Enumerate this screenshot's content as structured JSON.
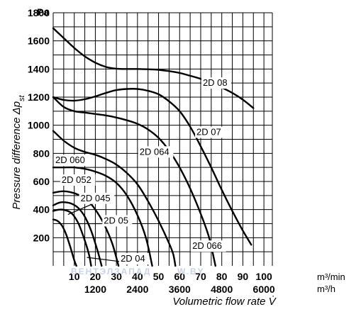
{
  "chart_data": {
    "type": "line",
    "ylabel_main": "Pressure difference Δp",
    "ylabel_sub": "st",
    "yunit": "Pa",
    "xlabel": "Volumetric flow rate V̇",
    "x_unit_min": "m³/min",
    "x_unit_h": "m³/h",
    "ylim": [
      0,
      1800
    ],
    "xlim": [
      0,
      104
    ],
    "grid": true,
    "y_ticks": [
      "1800",
      "1600",
      "1400",
      "1200",
      "1000",
      "800",
      "600",
      "400",
      "200"
    ],
    "x_ticks_min": [
      "10",
      "20",
      "30",
      "40",
      "50",
      "60",
      "70",
      "80",
      "90",
      "100"
    ],
    "x_ticks_h": [
      "1200",
      "2400",
      "3600",
      "4800",
      "6000"
    ],
    "watermark": "ВЕНТЭЛЗАПАД",
    "watermark_tail": "W.BY",
    "series": [
      {
        "name": "2D 08",
        "points": [
          [
            0,
            1690
          ],
          [
            5,
            1620
          ],
          [
            10,
            1550
          ],
          [
            15,
            1490
          ],
          [
            20,
            1445
          ],
          [
            25,
            1415
          ],
          [
            30,
            1402
          ],
          [
            35,
            1400
          ],
          [
            40,
            1400
          ],
          [
            45,
            1398
          ],
          [
            50,
            1394
          ],
          [
            55,
            1385
          ],
          [
            60,
            1372
          ],
          [
            65,
            1352
          ],
          [
            70,
            1330
          ],
          [
            75,
            1302
          ],
          [
            80,
            1268
          ],
          [
            85,
            1230
          ],
          [
            90,
            1182
          ],
          [
            95,
            1122
          ]
        ]
      },
      {
        "name": "2D 07",
        "points": [
          [
            0,
            1200
          ],
          [
            5,
            1180
          ],
          [
            10,
            1175
          ],
          [
            15,
            1185
          ],
          [
            20,
            1205
          ],
          [
            25,
            1230
          ],
          [
            30,
            1250
          ],
          [
            35,
            1258
          ],
          [
            40,
            1258
          ],
          [
            45,
            1245
          ],
          [
            50,
            1220
          ],
          [
            55,
            1170
          ],
          [
            60,
            1100
          ],
          [
            65,
            990
          ],
          [
            70,
            850
          ],
          [
            75,
            700
          ],
          [
            80,
            540
          ],
          [
            85,
            390
          ],
          [
            90,
            250
          ],
          [
            94,
            150
          ]
        ]
      },
      {
        "name": "2D 066",
        "points": [
          [
            0,
            1200
          ],
          [
            5,
            1130
          ],
          [
            10,
            1100
          ],
          [
            15,
            1090
          ],
          [
            20,
            1080
          ],
          [
            25,
            1070
          ],
          [
            30,
            1055
          ],
          [
            35,
            1035
          ],
          [
            40,
            1010
          ],
          [
            45,
            970
          ],
          [
            50,
            910
          ],
          [
            55,
            820
          ],
          [
            60,
            700
          ],
          [
            65,
            550
          ],
          [
            70,
            370
          ],
          [
            74,
            200
          ],
          [
            77,
            0
          ]
        ]
      },
      {
        "name": "2D 064",
        "points": [
          [
            0,
            960
          ],
          [
            5,
            890
          ],
          [
            10,
            840
          ],
          [
            15,
            810
          ],
          [
            20,
            790
          ],
          [
            25,
            760
          ],
          [
            30,
            720
          ],
          [
            35,
            660
          ],
          [
            40,
            580
          ],
          [
            45,
            460
          ],
          [
            50,
            320
          ],
          [
            55,
            160
          ],
          [
            57,
            80
          ],
          [
            58,
            0
          ]
        ]
      },
      {
        "name": "2D 060",
        "points": [
          [
            0,
            700
          ],
          [
            5,
            700
          ],
          [
            10,
            700
          ],
          [
            15,
            690
          ],
          [
            20,
            670
          ],
          [
            25,
            640
          ],
          [
            30,
            590
          ],
          [
            35,
            500
          ],
          [
            40,
            360
          ],
          [
            44,
            200
          ],
          [
            47,
            0
          ]
        ]
      },
      {
        "name": "2D 052",
        "points": [
          [
            0,
            520
          ],
          [
            4,
            530
          ],
          [
            8,
            525
          ],
          [
            12,
            505
          ],
          [
            16,
            470
          ],
          [
            20,
            400
          ],
          [
            24,
            300
          ],
          [
            28,
            160
          ],
          [
            31,
            0
          ]
        ]
      },
      {
        "name": "2D 045",
        "points": [
          [
            0,
            430
          ],
          [
            3,
            450
          ],
          [
            6,
            452
          ],
          [
            9,
            440
          ],
          [
            12,
            410
          ],
          [
            15,
            350
          ],
          [
            18,
            250
          ],
          [
            21,
            110
          ],
          [
            23,
            0
          ]
        ]
      },
      {
        "name": "2D 05",
        "points": [
          [
            0,
            390
          ],
          [
            3,
            400
          ],
          [
            6,
            395
          ],
          [
            9,
            370
          ],
          [
            12,
            300
          ],
          [
            15,
            180
          ],
          [
            17,
            80
          ],
          [
            18,
            0
          ]
        ]
      },
      {
        "name": "2D 04",
        "points": [
          [
            0,
            330
          ],
          [
            2,
            320
          ],
          [
            4,
            290
          ],
          [
            6,
            230
          ],
          [
            8,
            140
          ],
          [
            10,
            40
          ],
          [
            11,
            0
          ]
        ]
      }
    ],
    "labels": [
      {
        "text": "2D 08",
        "x": 71,
        "y": 1280
      },
      {
        "text": "2D 07",
        "x": 68,
        "y": 930
      },
      {
        "text": "2D 066",
        "x": 66,
        "y": 120
      },
      {
        "text": "2D 064",
        "x": 41,
        "y": 790
      },
      {
        "text": "2D 060",
        "x": 1,
        "y": 730
      },
      {
        "text": "2D 052",
        "x": 4,
        "y": 590
      },
      {
        "text": "2D 045",
        "x": 13,
        "y": 460
      },
      {
        "text": "2D 05",
        "x": 24,
        "y": 300
      },
      {
        "text": "2D 04",
        "x": 32,
        "y": 30
      }
    ]
  }
}
